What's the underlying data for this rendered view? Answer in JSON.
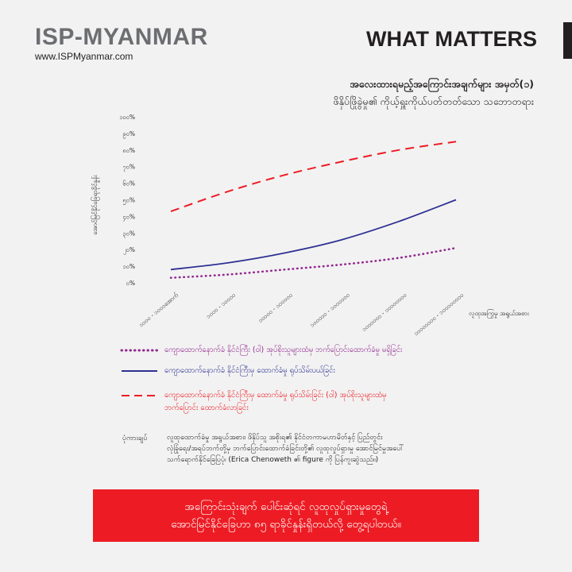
{
  "header": {
    "brand": "ISP-MYANMAR",
    "url": "www.ISPMyanmar.com",
    "series": "WHAT MATTERS"
  },
  "title": "အလေးထားရမည့်အကြောင်းအချက်များ အမှတ်(၁)",
  "subtitle": "ဖိနှိပ်ဖြိုခွဲမှု၏ ကိုယ့်ရှူးကိုယ်ပတ်တတ်သော သဘောတရား",
  "chart_data": {
    "type": "line",
    "ylabel": "အောင်မြင်နိုင်ခြေရာခိုင်နှုန်း",
    "xlabel": "လူထုအကြွမှု အရွယ်အစား",
    "x": [
      "၁၀၀၀ - ၁၀၀၀အောက်",
      "၁၀၀၀ - ၁၀၀၀၀",
      "၁၀၀၀၀ - ၁၀၀၀၀၀",
      "၁၀၀၀၀၀ - ၁၀၀၀၀၀၀",
      "၁၀၀၀၀၀၀ - ၁၀၀၀၀၀၀၀",
      "၁၀၀၀၀၀၀၀ - ၁၀၀၀၀၀၀၀၀"
    ],
    "yticks": [
      "၀%",
      "၁၀%",
      "၂၀%",
      "၃၀%",
      "၄၀%",
      "၅၀%",
      "၆၀%",
      "၇၀%",
      "၈၀%",
      "၉၀%",
      "၁၀၀%"
    ],
    "ylim": [
      0,
      100
    ],
    "grid": false,
    "series": [
      {
        "name": "ကျောထောက်နောက်ခံ နိုင်ငံကြီး (ဝါ) အုပ်စိုးသူများထံမှ ဘက်ပြောင်းထောက်ခံမှု မရှိခြင်း",
        "color": "#92278f",
        "style": "dotted",
        "values": [
          3,
          5,
          8,
          11,
          15,
          21
        ]
      },
      {
        "name": "ကျောထောက်နောက်ခံ နိုင်ငံကြီးမှ ထောက်ခံမှု ရုပ်သိမ်းပယ်ခြင်း",
        "color": "#2e3192",
        "style": "solid",
        "values": [
          8,
          12,
          18,
          26,
          37,
          50
        ]
      },
      {
        "name": "ကျောထောက်နောက်ခံ နိုင်ငံကြီးမှ ထောက်ခံမှု ရုပ်သိမ်းခြင်း (ဝါ) အုပ်စိုးသူများထံမှ ဘက်ပြောင်း ထောက်ခံလာခြင်း",
        "color": "#ed1c24",
        "style": "dashed",
        "values": [
          43,
          55,
          65,
          73,
          80,
          85
        ]
      }
    ]
  },
  "legend": {
    "line1": "ကျောထောက်နောက်ခံ နိုင်ငံကြီး (ဝါ) အုပ်စိုးသူများထံမှ ဘက်ပြောင်းထောက်ခံမှု မရှိခြင်း",
    "line2": "ကျောထောက်နောက်ခံ နိုင်ငံကြီးမှ ထောက်ခံမှု ရုပ်သိမ်းပယ်ခြင်း",
    "line3a": "ကျောထောက်နောက်ခံ နိုင်ငံကြီးမှ ထောက်ခံမှု ရုပ်သိမ်းခြင်း (ဝါ) အုပ်စိုးသူများထံမှ",
    "line3b": "ဘက်ပြောင်း ထောက်ခံလာခြင်း"
  },
  "note": {
    "label": "ပုံကားချပ်",
    "line1": "လူထုထောက်ခံမှု အရွယ်အစား၊ ဖိနှိပ်သူ အစိုးရ၏ နိုင်ငံတကာမဟာမိတ်နှင့် ပြည်တွင်း",
    "line2": "လုံခြုံရေး/အရပ်ဘက်တို့မှ ဘက်ပြောင်းထောက်ခံခြင်းတို့၏ လူထုလှုပ်ရှားမှု အောင်မြင်မှုအပေါ်",
    "line3": "သက်ရောက်နိုင်ခြေပြပုံ၊ (Erica Chenoweth ၏ figure ကို ပြန်ကူးဆွဲသည်။)"
  },
  "banner": {
    "line1": "အကြောင်းသုံးချက် ပေါင်းဆုံရင် လူထုလှုပ်ရှားမှုတွေရဲ့",
    "line2": "အောင်မြင်နိုင်ခြေဟာ ၈၅ ရာခိုင်နှုန်းရှိတယ်လို့ တွေ့ရပါတယ်။"
  }
}
